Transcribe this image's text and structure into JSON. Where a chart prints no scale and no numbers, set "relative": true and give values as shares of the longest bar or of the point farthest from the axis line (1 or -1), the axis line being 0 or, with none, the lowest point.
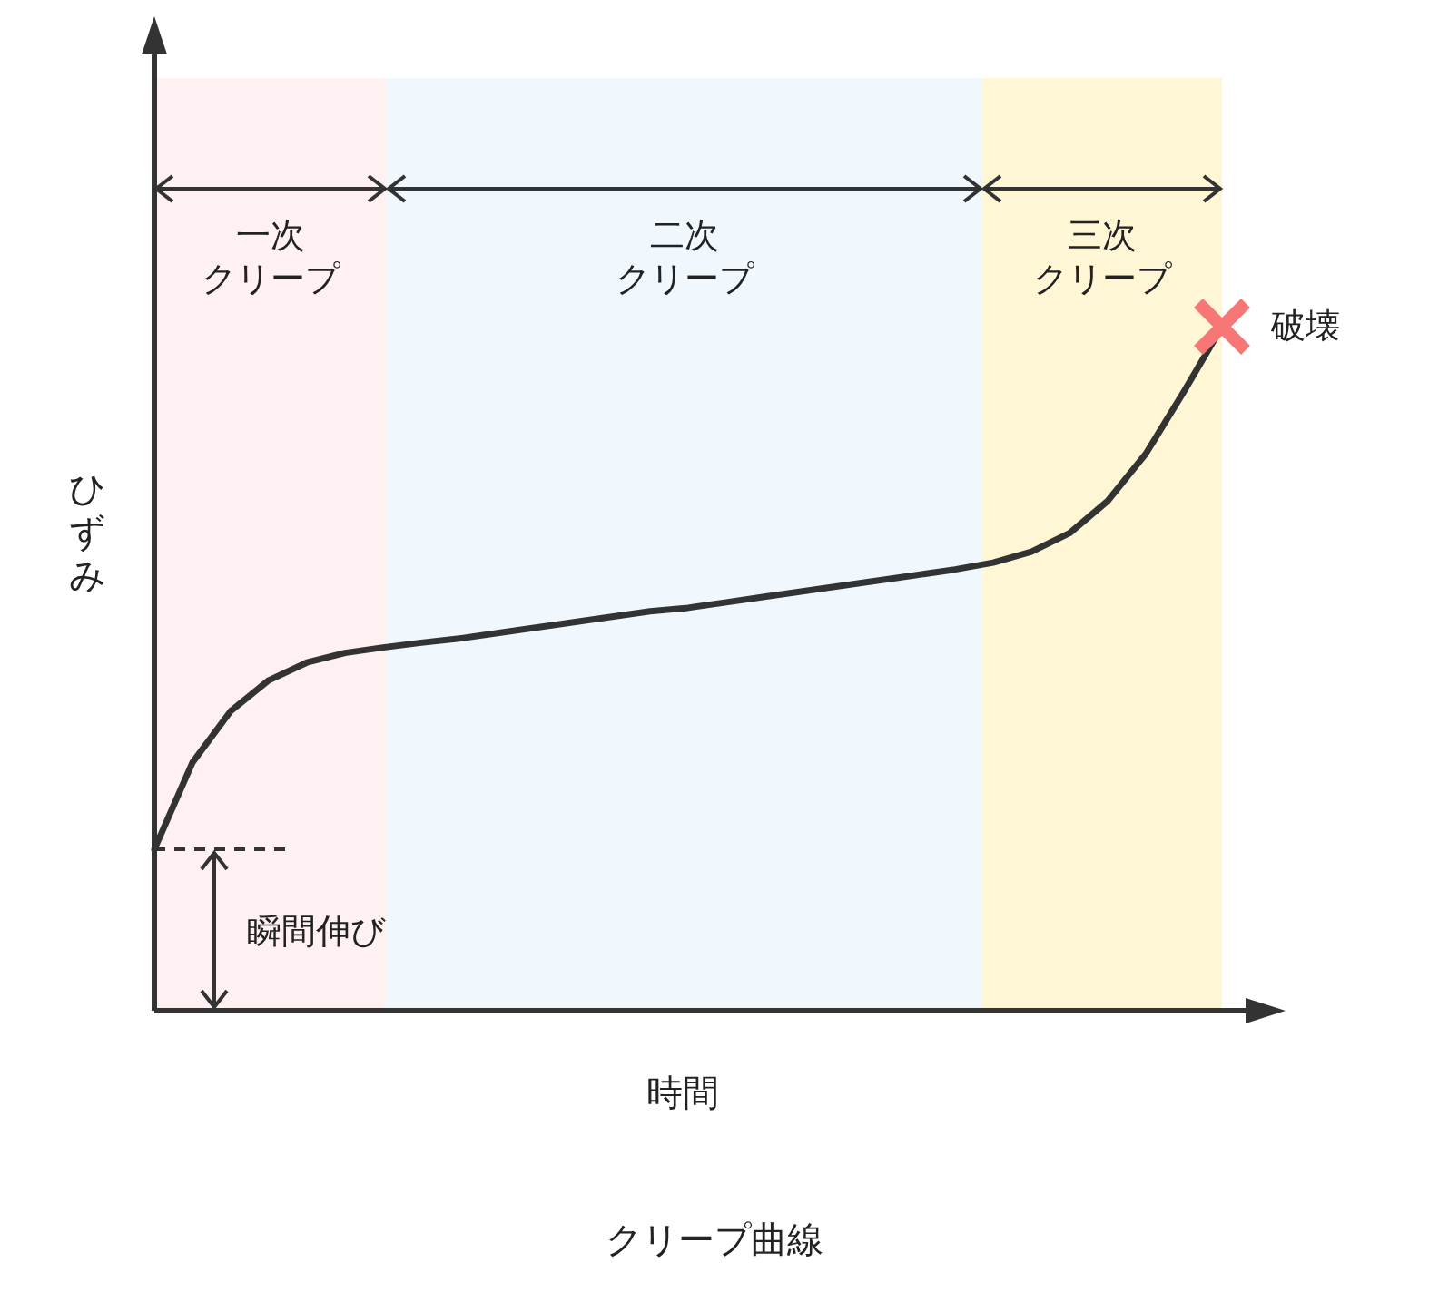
{
  "chart_data": {
    "type": "line",
    "title": "クリープ曲線",
    "xlabel": "時間",
    "ylabel": "ひずみ",
    "relative": true,
    "categories": [
      null,
      null,
      null,
      null,
      null,
      null,
      null,
      null,
      null,
      null,
      null,
      null,
      null,
      null,
      null,
      null,
      null,
      null,
      null,
      null,
      null,
      null,
      null,
      null,
      null,
      null,
      null,
      null,
      null
    ],
    "series": [
      {
        "color": "#333333",
        "line_style": "solid",
        "values": [
          0.236,
          0.363,
          0.438,
          0.483,
          0.509,
          0.523,
          0.531,
          0.538,
          0.544,
          0.552,
          0.56,
          0.568,
          0.576,
          0.584,
          0.589,
          0.597,
          0.605,
          0.613,
          0.621,
          0.629,
          0.637,
          0.645,
          0.655,
          0.671,
          0.698,
          0.745,
          0.814,
          0.905,
          1.0
        ]
      }
    ],
    "ref_lines": [
      {
        "axis": "y",
        "value": 0.236,
        "label": "瞬間伸び",
        "line_style": "dashed",
        "color": "#333333"
      }
    ],
    "annotations": [
      "一次クリープ",
      "二次クリープ",
      "三次クリープ",
      "破壊"
    ]
  }
}
